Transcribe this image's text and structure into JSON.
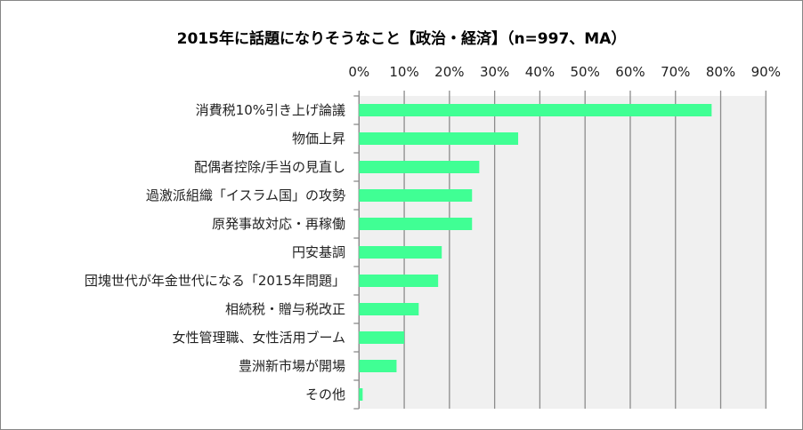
{
  "chart_data": {
    "type": "bar",
    "orientation": "horizontal",
    "title": "2015年に話題になりそうなこと【政治・経済】（n=997、MA）",
    "categories": [
      "消費税10%引き上げ論議",
      "物価上昇",
      "配偶者控除/手当の見直し",
      "過激派組織「イスラム国」の攻勢",
      "原発事故対応・再稼働",
      "円安基調",
      "団塊世代が年金世代になる「2015年問題」",
      "相続税・贈与税改正",
      "女性管理職、女性活用ブーム",
      "豊洲新市場が開場",
      "その他"
    ],
    "values": [
      78.0,
      35.2,
      26.6,
      25.0,
      25.0,
      18.3,
      17.5,
      13.2,
      10.0,
      8.3,
      0.8
    ],
    "xlim": [
      0,
      90
    ],
    "xticks": [
      "0%",
      "10%",
      "20%",
      "30%",
      "40%",
      "50%",
      "60%",
      "70%",
      "80%",
      "90%"
    ],
    "xlabel": "",
    "ylabel": "",
    "grid": true,
    "legend": "none",
    "colors": {
      "bar": "#40FF94",
      "plot_bg": "#F0F0F0",
      "grid": "#8C8C8C"
    }
  }
}
